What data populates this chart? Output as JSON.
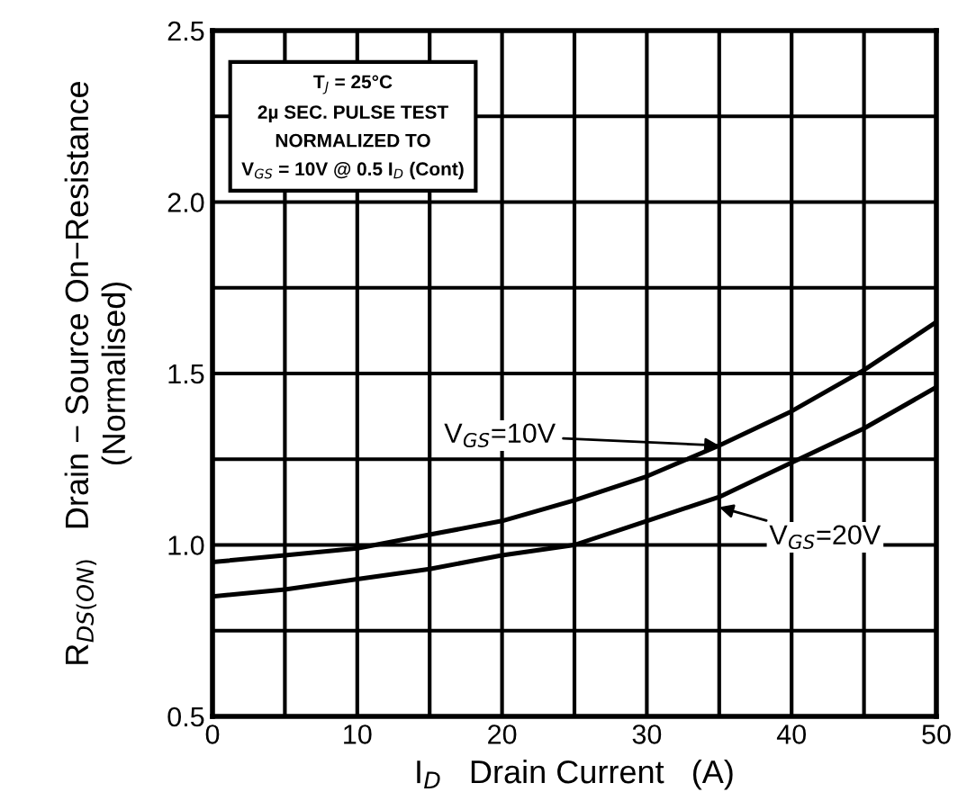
{
  "chart_data": {
    "type": "line",
    "xlabel": "I$_{D}$   Drain Current   (A)",
    "ylabel": "R$_{DS(ON)}$   Drain − Source On−Resistance\n(Normalised)",
    "x": [
      0,
      5,
      10,
      15,
      20,
      25,
      30,
      35,
      40,
      45,
      50
    ],
    "series": [
      {
        "color": "#000000",
        "values": [
          0.95,
          0.97,
          0.99,
          1.03,
          1.07,
          1.13,
          1.2,
          1.29,
          1.39,
          1.51,
          1.65
        ]
      },
      {
        "color": "#000000",
        "values": [
          0.85,
          0.87,
          0.9,
          0.93,
          0.97,
          1.0,
          1.07,
          1.14,
          1.24,
          1.34,
          1.46
        ]
      }
    ],
    "xlim": [
      0,
      50
    ],
    "ylim": [
      0.5,
      2.5
    ],
    "xticks": [
      0,
      10,
      20,
      30,
      40,
      50,
      {
        "value": 5,
        "label": null
      },
      {
        "value": 15,
        "label": null
      },
      {
        "value": 25,
        "label": null
      },
      {
        "value": 35,
        "label": null
      },
      {
        "value": 45,
        "label": null
      }
    ],
    "yticks": [
      {
        "value": 0.5,
        "label": "0.5"
      },
      {
        "value": 1.0,
        "label": "1.0"
      },
      {
        "value": 1.5,
        "label": "1.5"
      },
      {
        "value": 2.0,
        "label": "2.0"
      },
      {
        "value": 2.5,
        "label": "2.5"
      },
      {
        "value": 0.75,
        "label": null
      },
      {
        "value": 1.25,
        "label": null
      },
      {
        "value": 1.75,
        "label": null
      },
      {
        "value": 2.25,
        "label": null
      }
    ],
    "grid": true,
    "marker": "none",
    "line_style": "solid",
    "annotations": [
      "T$_{J}$ = 25°C\n2µ SEC. PULSE TEST\nNORMALIZED TO\nV$_{GS}$ = 10V @ 0.5 I$_{D}$ (Cont)",
      {
        "text": "V$_{GS}$=10V",
        "x": 35,
        "y": 1.29
      },
      {
        "text": "V$_{GS}$=20V",
        "x": 35,
        "y": 1.11
      }
    ]
  }
}
